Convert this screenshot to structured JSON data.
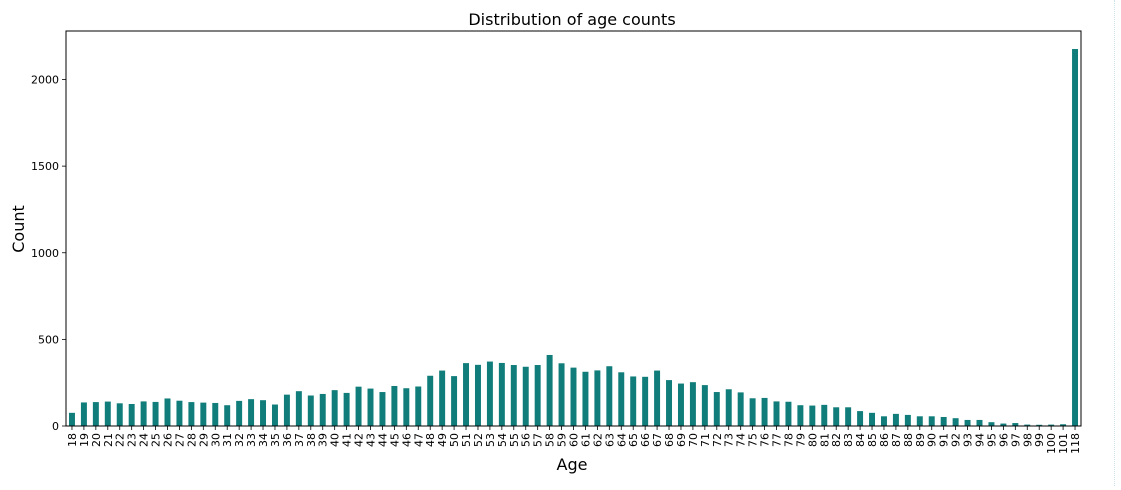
{
  "chart_data": {
    "type": "bar",
    "title": "Distribution of age counts",
    "xlabel": "Age",
    "ylabel": "Count",
    "bar_color": "#117d7a",
    "ylim": [
      0,
      2280
    ],
    "yticks": [
      0,
      500,
      1000,
      1500,
      2000
    ],
    "grid": false,
    "categories": [
      "18",
      "19",
      "20",
      "21",
      "22",
      "23",
      "24",
      "25",
      "26",
      "27",
      "28",
      "29",
      "30",
      "31",
      "32",
      "33",
      "34",
      "35",
      "36",
      "37",
      "38",
      "39",
      "40",
      "41",
      "42",
      "43",
      "44",
      "45",
      "46",
      "47",
      "48",
      "49",
      "50",
      "51",
      "52",
      "53",
      "54",
      "55",
      "56",
      "57",
      "58",
      "59",
      "60",
      "61",
      "62",
      "63",
      "64",
      "65",
      "66",
      "67",
      "68",
      "69",
      "70",
      "71",
      "72",
      "73",
      "74",
      "75",
      "76",
      "77",
      "78",
      "79",
      "80",
      "81",
      "82",
      "83",
      "84",
      "85",
      "86",
      "87",
      "88",
      "89",
      "90",
      "91",
      "92",
      "93",
      "94",
      "95",
      "96",
      "97",
      "98",
      "99",
      "100",
      "101",
      "118"
    ],
    "values": [
      76,
      136,
      138,
      141,
      131,
      127,
      142,
      139,
      159,
      146,
      138,
      135,
      133,
      120,
      145,
      155,
      149,
      124,
      181,
      201,
      176,
      185,
      207,
      191,
      227,
      216,
      196,
      231,
      218,
      228,
      290,
      320,
      288,
      363,
      353,
      372,
      364,
      352,
      342,
      352,
      410,
      362,
      337,
      313,
      321,
      345,
      310,
      286,
      284,
      320,
      265,
      245,
      253,
      236,
      196,
      212,
      194,
      160,
      162,
      142,
      140,
      120,
      118,
      122,
      108,
      108,
      86,
      76,
      56,
      70,
      64,
      56,
      56,
      52,
      45,
      35,
      35,
      22,
      14,
      17,
      8,
      7,
      8,
      10,
      2176
    ]
  }
}
